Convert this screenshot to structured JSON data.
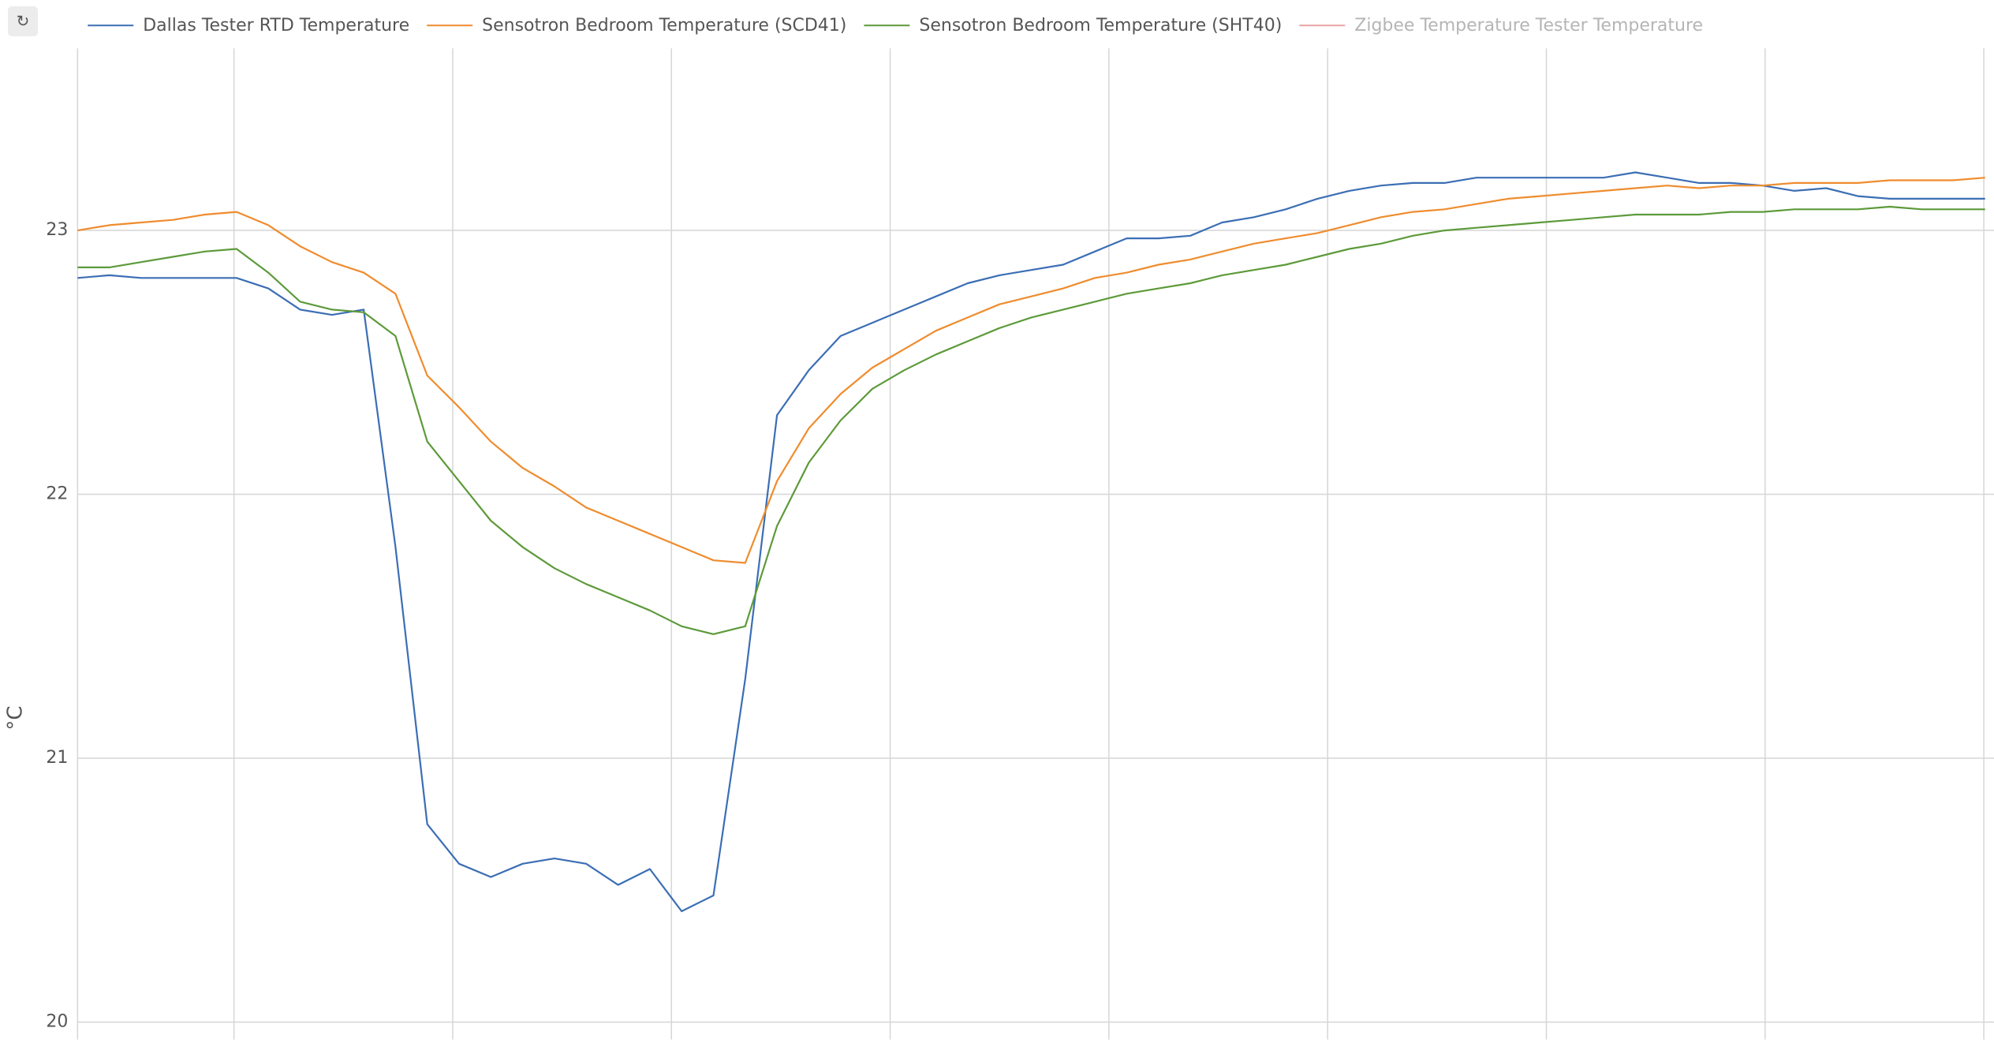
{
  "chart_data": {
    "type": "line",
    "y_label": "°C",
    "ylim": [
      19.94,
      23.69
    ],
    "yticks": [
      20,
      21,
      22,
      23
    ],
    "grid": true,
    "series": [
      {
        "name": "Dallas Tester RTD Temperature",
        "color": "#3b6eb4",
        "values": [
          22.82,
          22.83,
          22.82,
          22.82,
          22.82,
          22.82,
          22.78,
          22.7,
          22.68,
          22.7,
          21.8,
          20.75,
          20.6,
          20.55,
          20.6,
          20.62,
          20.6,
          20.52,
          20.58,
          20.42,
          20.48,
          21.3,
          22.3,
          22.47,
          22.6,
          22.65,
          22.7,
          22.75,
          22.8,
          22.83,
          22.85,
          22.87,
          22.92,
          22.97,
          22.97,
          22.98,
          23.03,
          23.05,
          23.08,
          23.12,
          23.15,
          23.17,
          23.18,
          23.18,
          23.2,
          23.2,
          23.2,
          23.2,
          23.2,
          23.22,
          23.2,
          23.18,
          23.18,
          23.17,
          23.15,
          23.16,
          23.13,
          23.12,
          23.12,
          23.12,
          23.12
        ]
      },
      {
        "name": "Sensotron Bedroom Temperature (SCD41)",
        "color": "#ef8c2e",
        "values": [
          23.0,
          23.02,
          23.03,
          23.04,
          23.06,
          23.07,
          23.02,
          22.94,
          22.88,
          22.84,
          22.76,
          22.45,
          22.33,
          22.2,
          22.1,
          22.03,
          21.95,
          21.9,
          21.85,
          21.8,
          21.75,
          21.74,
          22.05,
          22.25,
          22.38,
          22.48,
          22.55,
          22.62,
          22.67,
          22.72,
          22.75,
          22.78,
          22.82,
          22.84,
          22.87,
          22.89,
          22.92,
          22.95,
          22.97,
          22.99,
          23.02,
          23.05,
          23.07,
          23.08,
          23.1,
          23.12,
          23.13,
          23.14,
          23.15,
          23.16,
          23.17,
          23.16,
          23.17,
          23.17,
          23.18,
          23.18,
          23.18,
          23.19,
          23.19,
          23.19,
          23.2
        ]
      },
      {
        "name": "Sensotron Bedroom Temperature (SHT40)",
        "color": "#5d9a3a",
        "values": [
          22.86,
          22.86,
          22.88,
          22.9,
          22.92,
          22.93,
          22.84,
          22.73,
          22.7,
          22.69,
          22.6,
          22.2,
          22.05,
          21.9,
          21.8,
          21.72,
          21.66,
          21.61,
          21.56,
          21.5,
          21.47,
          21.5,
          21.88,
          22.12,
          22.28,
          22.4,
          22.47,
          22.53,
          22.58,
          22.63,
          22.67,
          22.7,
          22.73,
          22.76,
          22.78,
          22.8,
          22.83,
          22.85,
          22.87,
          22.9,
          22.93,
          22.95,
          22.98,
          23.0,
          23.01,
          23.02,
          23.03,
          23.04,
          23.05,
          23.06,
          23.06,
          23.06,
          23.07,
          23.07,
          23.08,
          23.08,
          23.08,
          23.09,
          23.08,
          23.08,
          23.08
        ]
      },
      {
        "name": "Zigbee Temperature Tester Temperature",
        "color": "#e8a3a3",
        "hidden": true
      }
    ]
  }
}
